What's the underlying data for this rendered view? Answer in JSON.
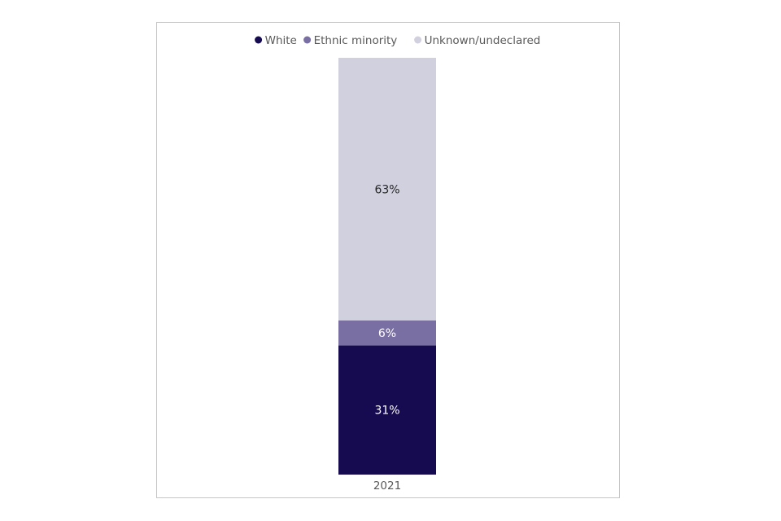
{
  "chart_data": {
    "type": "bar",
    "stacked": true,
    "categories": [
      "2021"
    ],
    "series": [
      {
        "name": "White",
        "values": [
          31
        ],
        "labels": [
          "31%"
        ],
        "color": "#160b50",
        "label_color": "#ffffff"
      },
      {
        "name": "Ethnic minority",
        "values": [
          6
        ],
        "labels": [
          "6%"
        ],
        "color": "#7a6fa3",
        "label_color": "#ffffff"
      },
      {
        "name": "Unknown/undeclared",
        "values": [
          63
        ],
        "labels": [
          "63%"
        ],
        "color": "#d1d0df",
        "label_color": "#262626"
      }
    ],
    "ylim": [
      0,
      100
    ],
    "legend": "top",
    "grid": false
  }
}
